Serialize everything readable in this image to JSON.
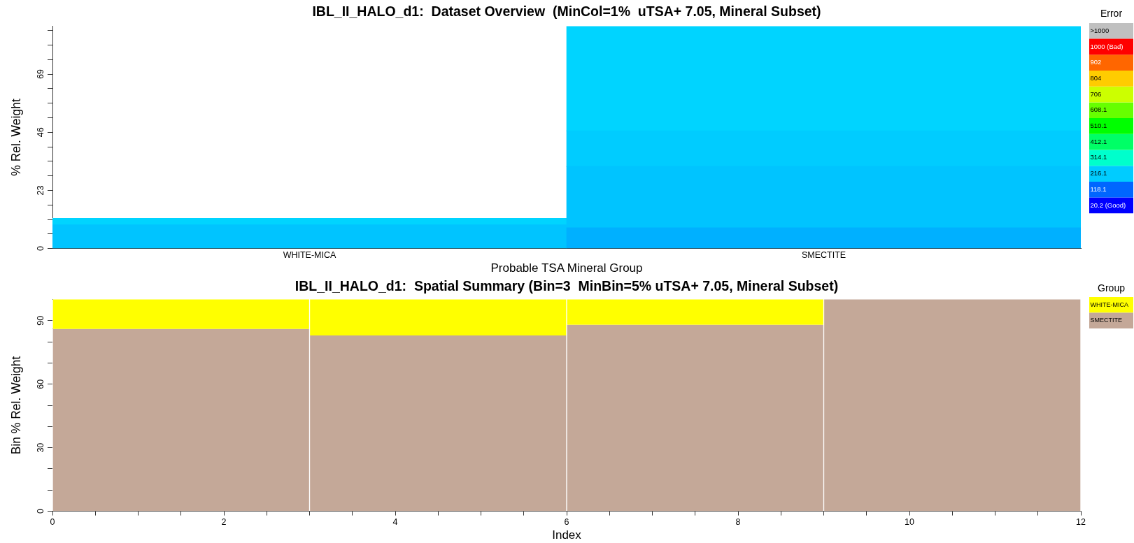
{
  "chart_data": [
    {
      "type": "bar",
      "title": "IBL_II_HALO_d1:  Dataset Overview  (MinCol=1%  uTSA+ 7.05, Mineral Subset)",
      "xlabel": "Probable TSA Mineral Group",
      "ylabel": "% Rel. Weight",
      "categories": [
        "WHITE-MICA",
        "SMECTITE"
      ],
      "series": [
        {
          "colors": [
            "#00c4ff",
            "#00b0ff"
          ],
          "values": [
            9.4,
            8.2
          ]
        },
        {
          "colors": [
            "#00d4ff",
            "#00c4ff"
          ],
          "values": [
            2.6,
            24.3
          ]
        },
        {
          "colors": [
            "#00ccff",
            "#00ccff"
          ],
          "values": [
            null,
            14.1
          ]
        },
        {
          "colors": [
            "#00d4ff",
            "#00d4ff"
          ],
          "values": [
            null,
            41.4
          ]
        }
      ],
      "stacked": true,
      "ylim": [
        0,
        88
      ],
      "yticks": [
        0,
        {
          "value": 5.75,
          "label": null
        },
        {
          "value": 11.5,
          "label": null
        },
        {
          "value": 17.25,
          "label": null
        },
        23,
        {
          "value": 28.75,
          "label": null
        },
        {
          "value": 34.5,
          "label": null
        },
        {
          "value": 40.25,
          "label": null
        },
        46,
        {
          "value": 51.75,
          "label": null
        },
        {
          "value": 57.5,
          "label": null
        },
        {
          "value": 63.25,
          "label": null
        },
        69,
        {
          "value": 74.75,
          "label": null
        },
        {
          "value": 80.5,
          "label": null
        },
        {
          "value": 86.25,
          "label": null
        }
      ],
      "clabel": "Error",
      "cticks": [
        {
          "value": 20.2,
          "label": "20.2 (Good)"
        },
        {
          "value": 118.1,
          "label": "118.1"
        },
        {
          "value": 216.1,
          "label": "216.1"
        },
        {
          "value": 314.1,
          "label": "314.1"
        },
        {
          "value": 412.1,
          "label": "412.1"
        },
        {
          "value": 510.1,
          "label": "510.1"
        },
        {
          "value": 608.1,
          "label": "608.1"
        },
        {
          "value": 706,
          "label": "706"
        },
        {
          "value": 804,
          "label": "804"
        },
        {
          "value": 902,
          "label": "902"
        },
        {
          "value": 1000,
          "label": "1000 (Bad)"
        }
      ],
      "annotations": [
        ">1000"
      ]
    },
    {
      "type": "bar",
      "title": "IBL_II_HALO_d1:  Spatial Summary (Bin=3  MinBin=5% uTSA+ 7.05, Mineral Subset)",
      "xlabel": "Index",
      "ylabel": "Bin % Rel. Weight",
      "x": [
        1.5,
        4.5,
        7.5,
        10.5
      ],
      "series": [
        {
          "name": "SMECTITE",
          "color": "#c4a898",
          "values": [
            86,
            83,
            88,
            100
          ]
        },
        {
          "name": "WHITE-MICA",
          "color": "#ffff00",
          "values": [
            14,
            17,
            12,
            0
          ]
        }
      ],
      "stacked": true,
      "xlim": [
        0,
        12
      ],
      "xticks": [
        0,
        {
          "value": 0.5,
          "label": null
        },
        {
          "value": 1,
          "label": null
        },
        {
          "value": 1.5,
          "label": null
        },
        2,
        {
          "value": 2.5,
          "label": null
        },
        {
          "value": 3,
          "label": null
        },
        {
          "value": 3.5,
          "label": null
        },
        4,
        {
          "value": 4.5,
          "label": null
        },
        {
          "value": 5,
          "label": null
        },
        {
          "value": 5.5,
          "label": null
        },
        6,
        {
          "value": 6.5,
          "label": null
        },
        {
          "value": 7,
          "label": null
        },
        {
          "value": 7.5,
          "label": null
        },
        8,
        {
          "value": 8.5,
          "label": null
        },
        {
          "value": 9,
          "label": null
        },
        {
          "value": 9.5,
          "label": null
        },
        10,
        {
          "value": 10.5,
          "label": null
        },
        {
          "value": 11,
          "label": null
        },
        {
          "value": 11.5,
          "label": null
        },
        12
      ],
      "ylim": [
        0,
        100
      ],
      "yticks": [
        0,
        {
          "value": 10,
          "label": null
        },
        {
          "value": 20,
          "label": null
        },
        30,
        {
          "value": 40,
          "label": null
        },
        {
          "value": 50,
          "label": null
        },
        60,
        {
          "value": 70,
          "label": null
        },
        {
          "value": 80,
          "label": null
        },
        90
      ],
      "legend": "top right",
      "legend_title": "Group"
    }
  ]
}
